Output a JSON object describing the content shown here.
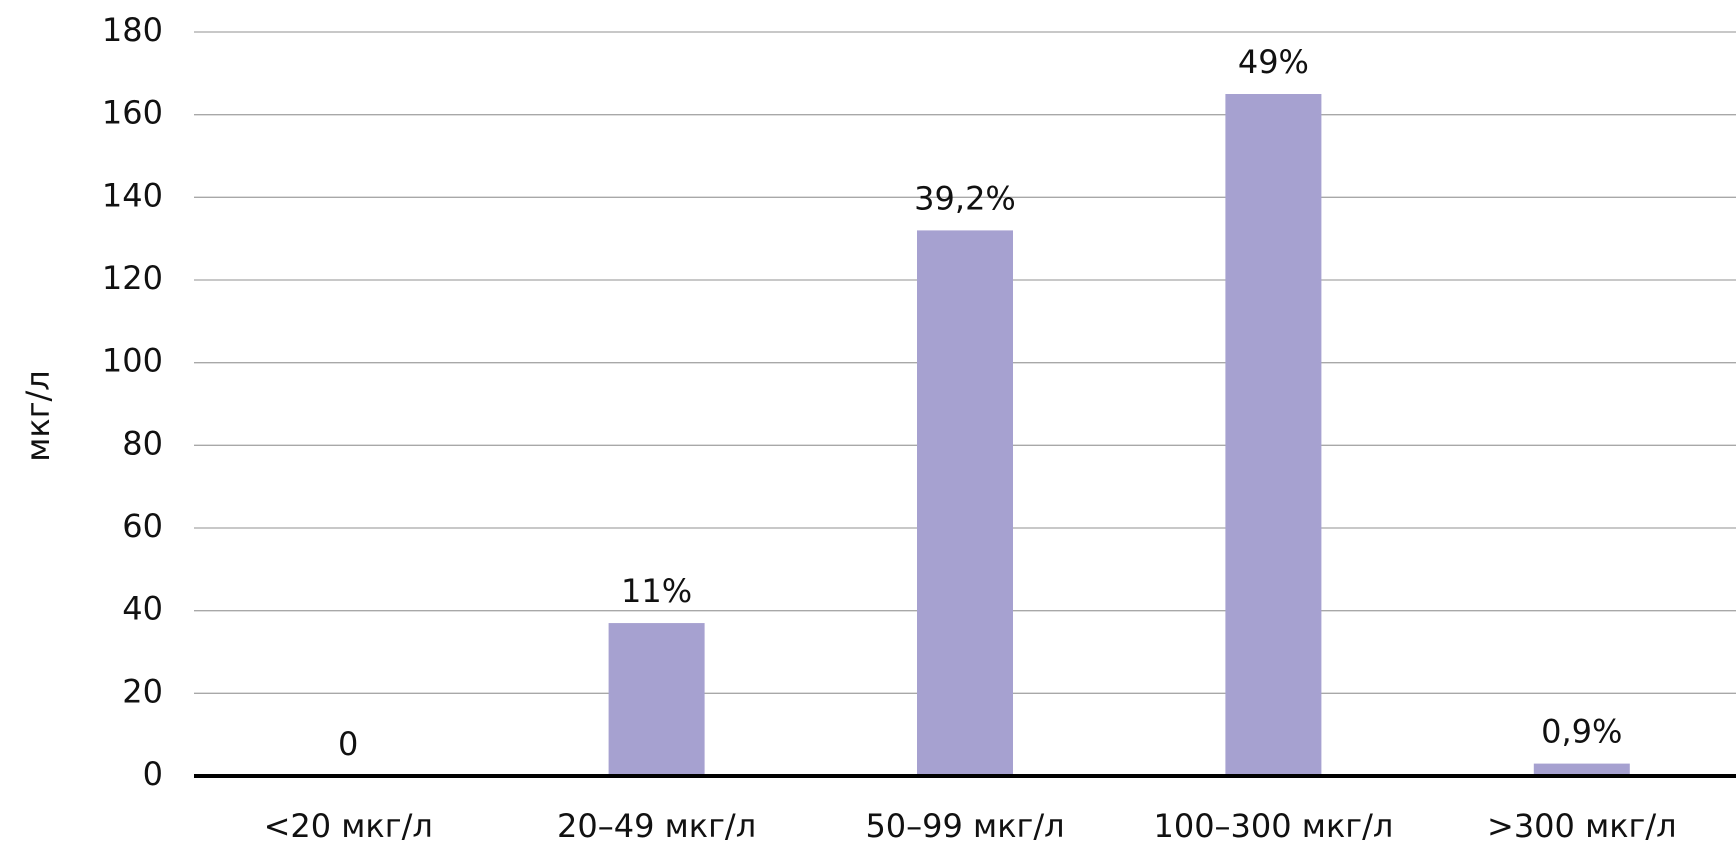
{
  "chart_data": {
    "type": "bar",
    "y_label": "мкг/л",
    "categories": [
      "<20 мкг/л",
      "20–49 мкг/л",
      "50–99 мкг/л",
      "100–300 мкг/л",
      ">300 мкг/л"
    ],
    "values": [
      0,
      37,
      132,
      165,
      3
    ],
    "annotations": [
      "0",
      "11%",
      "39,2%",
      "49%",
      "0,9%"
    ],
    "color": "#a6a1d0",
    "ylim": [
      0,
      180
    ],
    "yticks": [
      0,
      20,
      40,
      60,
      80,
      100,
      120,
      140,
      160,
      180
    ],
    "grid": true
  }
}
